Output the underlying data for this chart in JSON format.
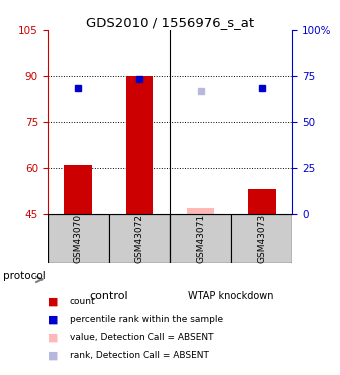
{
  "title": "GDS2010 / 1556976_s_at",
  "samples": [
    "GSM43070",
    "GSM43072",
    "GSM43071",
    "GSM43073"
  ],
  "bar_values": [
    61,
    90,
    47,
    53
  ],
  "bar_colors": [
    "#cc0000",
    "#cc0000",
    "#ffb8b8",
    "#cc0000"
  ],
  "dot_values": [
    86,
    89,
    85,
    86
  ],
  "dot_colors": [
    "#0000cc",
    "#0000cc",
    "#b8b8dd",
    "#0000cc"
  ],
  "ylim_left": [
    45,
    105
  ],
  "ylim_right": [
    0,
    100
  ],
  "yticks_left": [
    45,
    60,
    75,
    90,
    105
  ],
  "yticks_right": [
    0,
    25,
    50,
    75,
    100
  ],
  "ytick_labels_right": [
    "0",
    "25",
    "50",
    "75",
    "100%"
  ],
  "hlines": [
    60,
    75,
    90
  ],
  "bar_bottom": 45,
  "bar_width": 0.45,
  "left_axis_color": "#cc0000",
  "right_axis_color": "#0000cc",
  "sample_box_color": "#cccccc",
  "group_ctrl_color": "#aaeaaa",
  "group_wtap_color": "#44cc44",
  "legend_items": [
    {
      "color": "#cc0000",
      "label": "count"
    },
    {
      "color": "#0000cc",
      "label": "percentile rank within the sample"
    },
    {
      "color": "#ffb8b8",
      "label": "value, Detection Call = ABSENT"
    },
    {
      "color": "#b8b8dd",
      "label": "rank, Detection Call = ABSENT"
    }
  ]
}
